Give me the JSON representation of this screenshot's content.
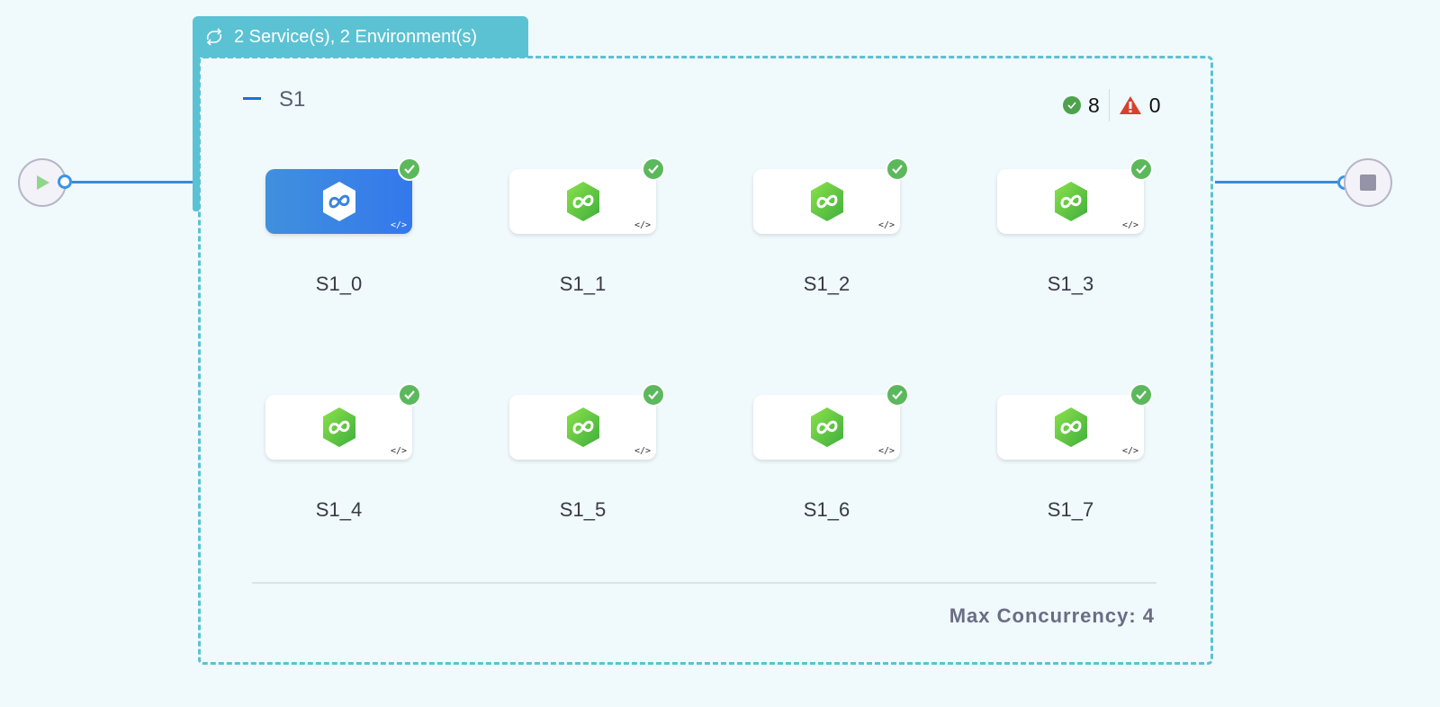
{
  "group": {
    "title": "2 Service(s), 2 Environment(s)",
    "stage": "S1",
    "success_count": "8",
    "warning_count": "0",
    "max_concurrency": "Max Concurrency: 4"
  },
  "nodes": [
    {
      "label": "S1_0",
      "selected": true,
      "status": "success"
    },
    {
      "label": "S1_1",
      "selected": false,
      "status": "success"
    },
    {
      "label": "S1_2",
      "selected": false,
      "status": "success"
    },
    {
      "label": "S1_3",
      "selected": false,
      "status": "success"
    },
    {
      "label": "S1_4",
      "selected": false,
      "status": "success"
    },
    {
      "label": "S1_5",
      "selected": false,
      "status": "success"
    },
    {
      "label": "S1_6",
      "selected": false,
      "status": "success"
    },
    {
      "label": "S1_7",
      "selected": false,
      "status": "success"
    }
  ],
  "colors": {
    "accent": "#5bc2d3",
    "edge": "#3a8ad8",
    "success": "#5cb85c",
    "warning": "#d9412f"
  }
}
